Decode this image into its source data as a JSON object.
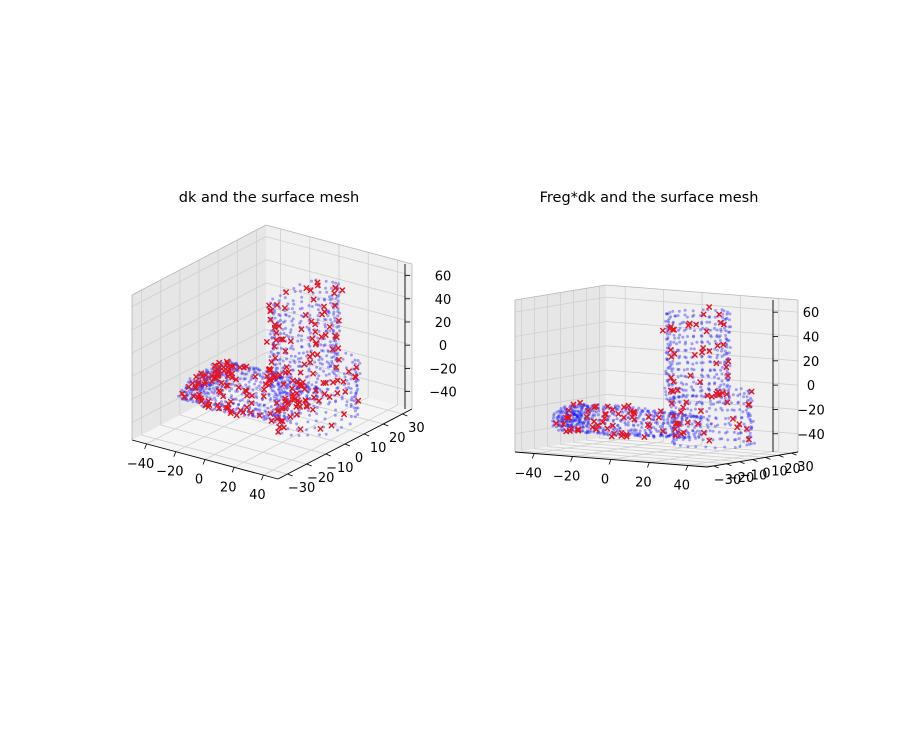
{
  "figure": {
    "titles": [
      "dk and the surface mesh",
      "Freg*dk and the surface mesh"
    ]
  },
  "colors": {
    "mesh_points": "#1515ff",
    "markers": "#e8141e",
    "pane_back": "#f0f0f0",
    "pane_side": "#e6e6e6",
    "pane_floor": "#f5f5f5",
    "grid": "#cfcfcf"
  },
  "chart_data": [
    {
      "type": "scatter",
      "projection": "3d",
      "title": "dk and the surface mesh",
      "xlabel": "",
      "ylabel": "",
      "zlabel": "",
      "xlim": [
        -50,
        50
      ],
      "ylim": [
        -35,
        35
      ],
      "zlim": [
        -55,
        70
      ],
      "x_ticks": [
        -40,
        -20,
        0,
        20,
        40
      ],
      "y_ticks": [
        -30,
        -20,
        -10,
        0,
        10,
        20,
        30
      ],
      "z_ticks": [
        -40,
        -20,
        0,
        20,
        40,
        60
      ],
      "x_tick_labels": [
        "−40",
        "−20",
        "0",
        "20",
        "40"
      ],
      "y_tick_labels": [
        "−30",
        "−20",
        "−10",
        "0",
        "10",
        "20",
        "30"
      ],
      "z_tick_labels": [
        "−40",
        "−20",
        "0",
        "20",
        "40",
        "60"
      ],
      "grid": true,
      "view": {
        "elev": 10,
        "azim": -60
      },
      "series": [
        {
          "marker": "dot",
          "description_role": "mesh vertices (foot-shaped surface)",
          "count_approx": 1500
        },
        {
          "marker": "x",
          "description_role": "dk points",
          "count_approx": 220
        }
      ]
    },
    {
      "type": "scatter",
      "projection": "3d",
      "title": "Freg*dk and the surface mesh",
      "xlabel": "",
      "ylabel": "",
      "zlabel": "",
      "xlim": [
        -50,
        50
      ],
      "ylim": [
        -35,
        35
      ],
      "zlim": [
        -55,
        70
      ],
      "x_ticks": [
        -40,
        -20,
        0,
        20,
        40
      ],
      "y_ticks": [
        -30,
        -20,
        -10,
        0,
        10,
        20,
        30
      ],
      "z_ticks": [
        -40,
        -20,
        0,
        20,
        40,
        60
      ],
      "x_tick_labels": [
        "−40",
        "−20",
        "0",
        "20",
        "40"
      ],
      "y_tick_labels": [
        "−30",
        "−20",
        "−10",
        "0",
        "10",
        "20",
        "30"
      ],
      "z_tick_labels": [
        "−40",
        "−20",
        "0",
        "20",
        "40",
        "60"
      ],
      "grid": true,
      "view": {
        "elev": 10,
        "azim": -80
      },
      "series": [
        {
          "marker": "dot",
          "description_role": "mesh vertices (foot-shaped surface)",
          "count_approx": 1500
        },
        {
          "marker": "x",
          "description_role": "Freg*dk points",
          "count_approx": 120
        }
      ]
    }
  ]
}
